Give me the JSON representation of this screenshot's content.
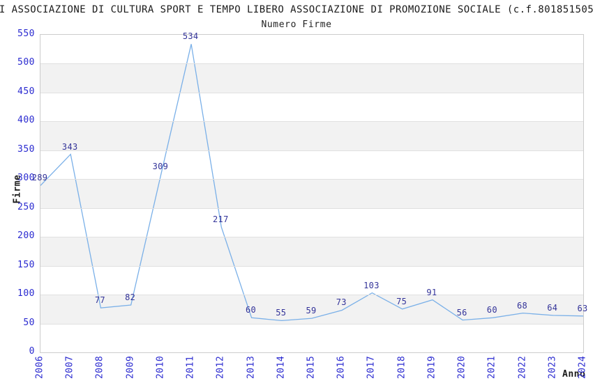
{
  "chart_data": {
    "type": "line",
    "title": "I ASSOCIAZIONE DI CULTURA SPORT E TEMPO LIBERO ASSOCIAZIONE DI PROMOZIONE SOCIALE (c.f.801851505",
    "subtitle": "Numero Firme",
    "xlabel": "Anno",
    "ylabel": "Firme",
    "categories": [
      "2006",
      "2007",
      "2008",
      "2009",
      "2010",
      "2011",
      "2012",
      "2013",
      "2014",
      "2015",
      "2016",
      "2017",
      "2018",
      "2019",
      "2020",
      "2021",
      "2022",
      "2023",
      "2024"
    ],
    "values": [
      289,
      343,
      77,
      82,
      309,
      534,
      217,
      60,
      55,
      59,
      73,
      103,
      75,
      91,
      56,
      60,
      68,
      64,
      63
    ],
    "ylim": [
      0,
      550
    ],
    "ytick_step": 50,
    "grid": "horizontal-bands-alternating",
    "legend": "none",
    "point_labels_visible": true,
    "colors": {
      "line": "#7ab0e8",
      "tick_label": "#2a2ad0",
      "point_label": "#333399",
      "band": "#f2f2f2",
      "gridline": "#e0e0e0",
      "plot_border": "#cccccc",
      "text": "#1a1a1a"
    }
  }
}
